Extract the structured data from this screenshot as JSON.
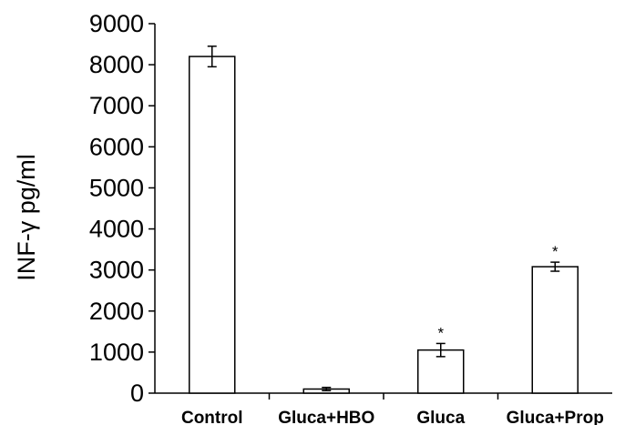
{
  "chart_data": {
    "type": "bar",
    "title": "",
    "xlabel": "",
    "ylabel": "INF-γ  pg/ml",
    "ylim": [
      0,
      9000
    ],
    "yticks": [
      0,
      1000,
      2000,
      3000,
      4000,
      5000,
      6000,
      7000,
      8000,
      9000
    ],
    "categories": [
      "Control",
      "Gluca+HBO",
      "Gluca",
      "Gluca+Prop"
    ],
    "values": [
      8200,
      100,
      1050,
      3080
    ],
    "errors": [
      250,
      40,
      160,
      110
    ],
    "annotations": [
      "",
      "",
      "*",
      "*"
    ],
    "grid": false,
    "legend": "none",
    "bar_fill": "#ffffff",
    "bar_stroke": "#000000"
  }
}
